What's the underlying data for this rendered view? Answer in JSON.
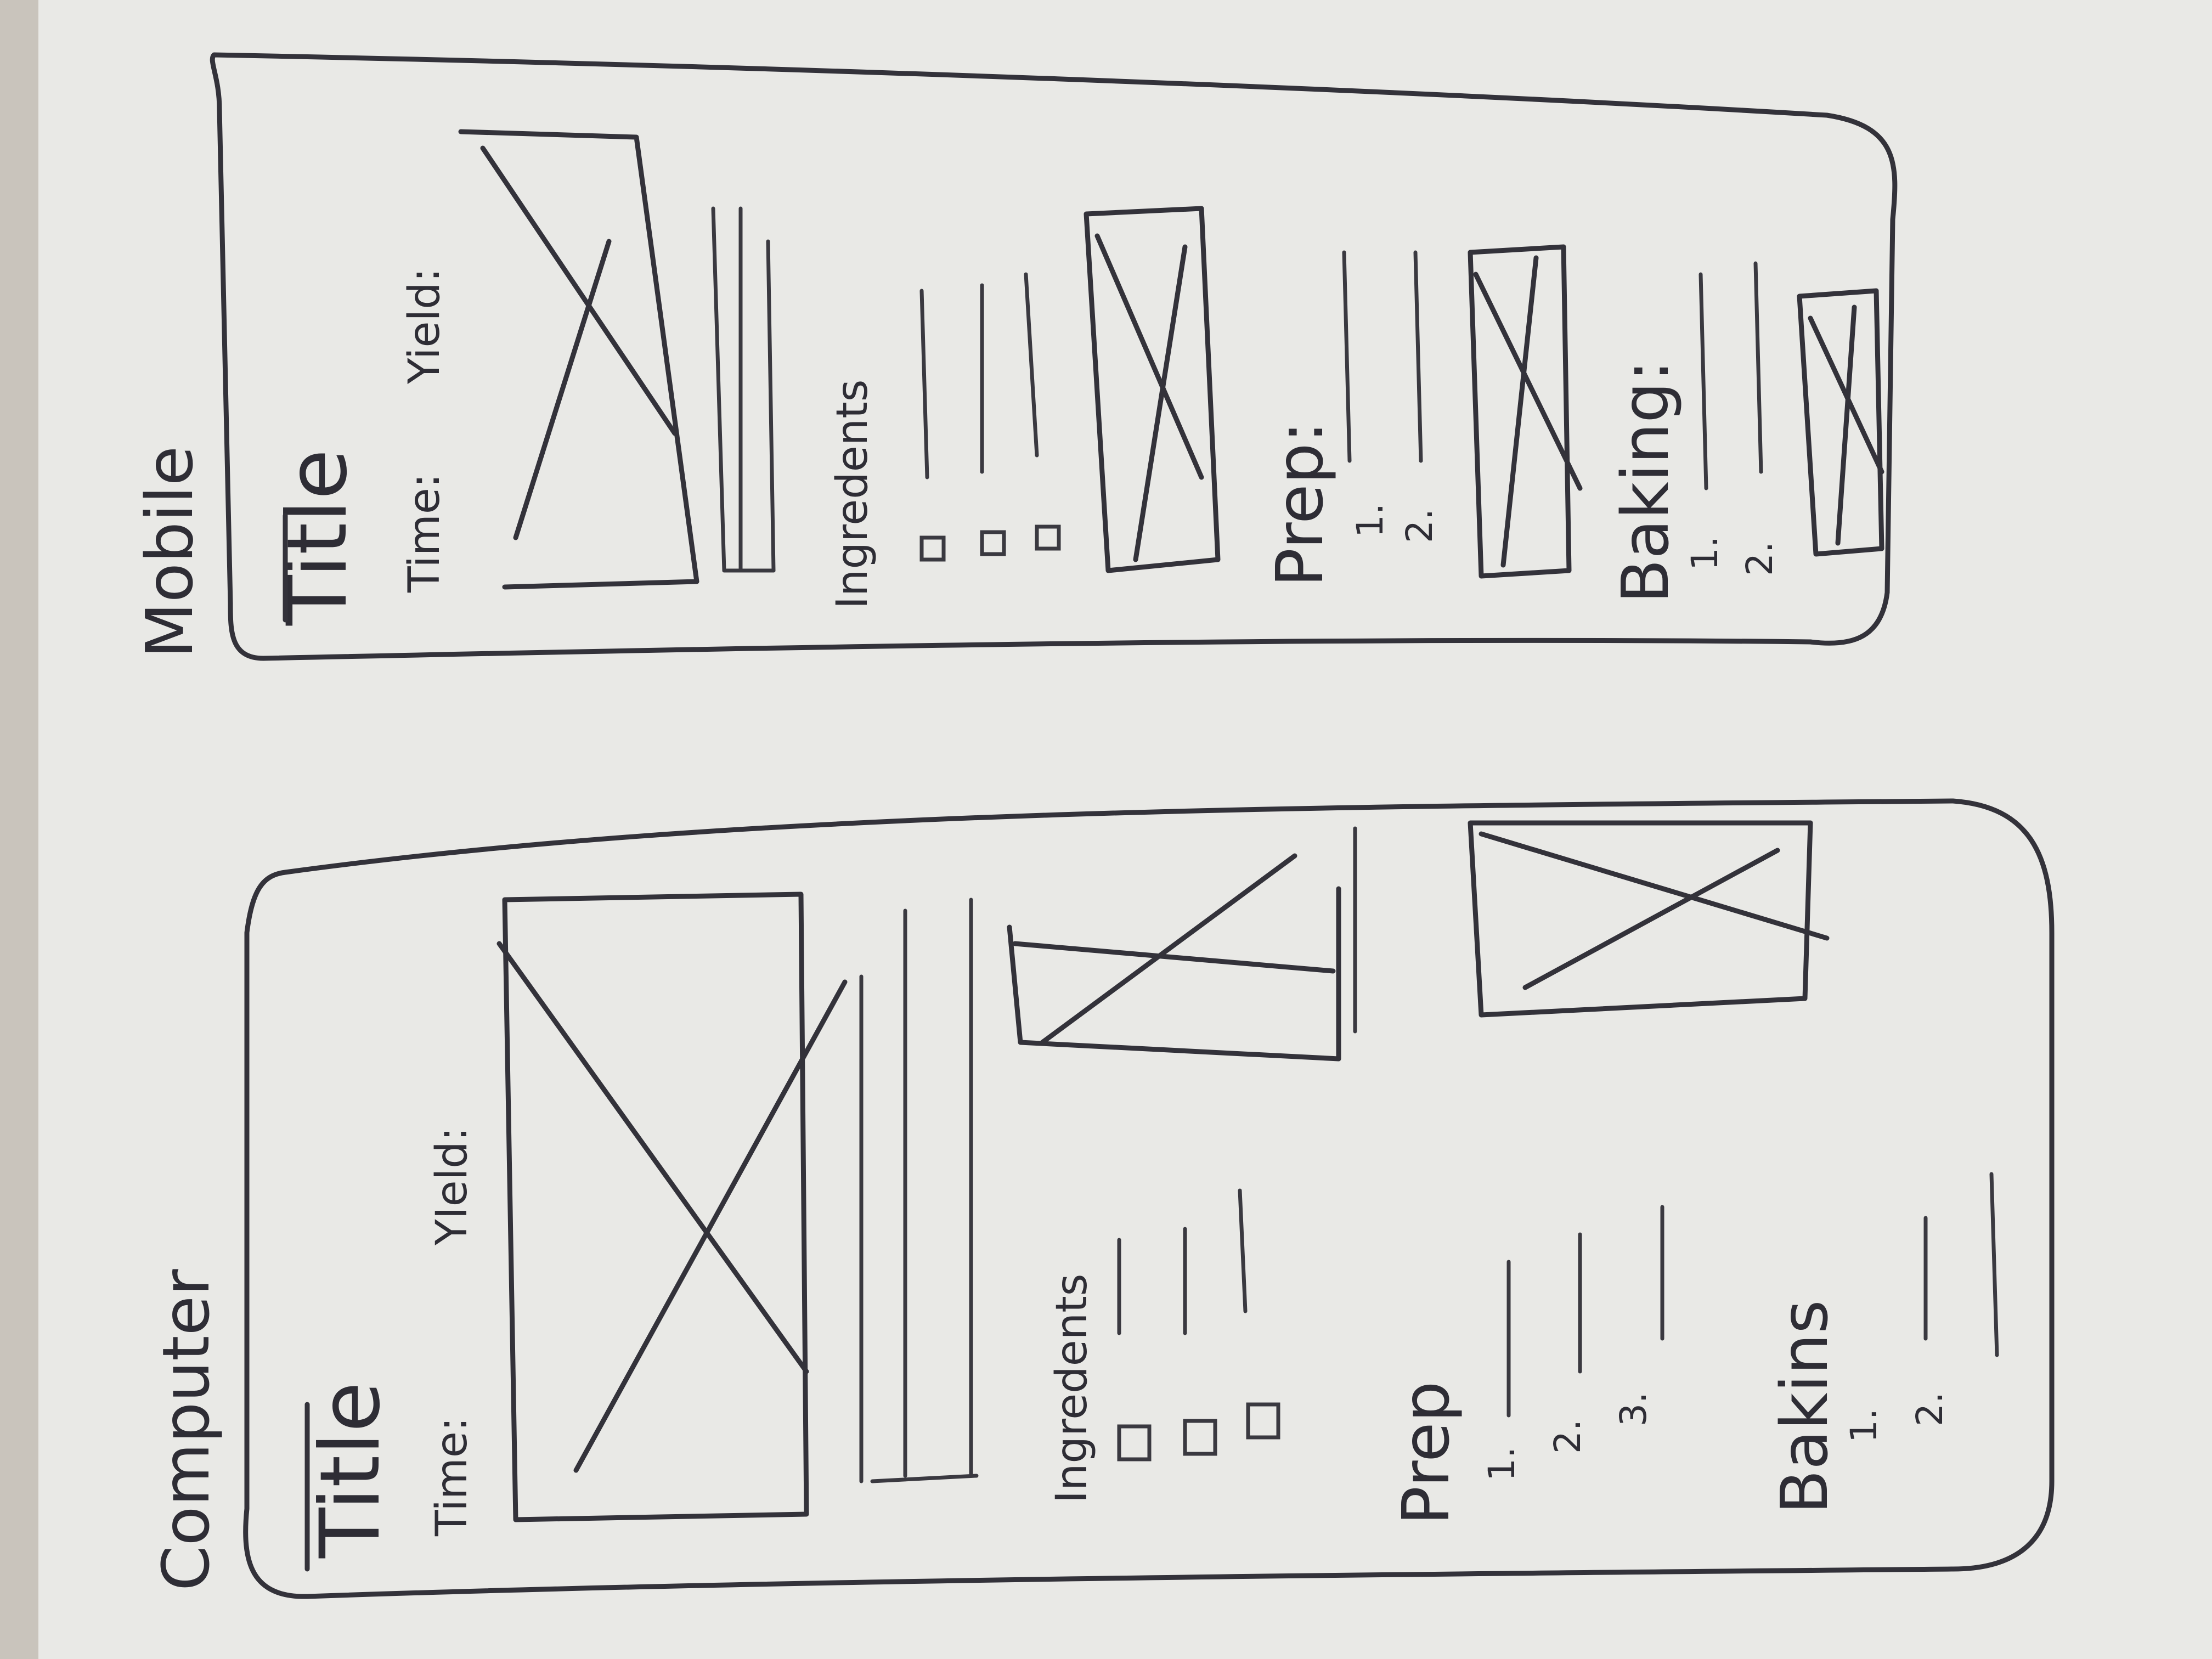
{
  "computer": {
    "heading": "Computer",
    "title": "Title",
    "time_label": "Time:",
    "yield_label": "YIeld:",
    "ingredients_label": "Ingredents",
    "prep_label": "Prep",
    "prep_steps": [
      "1.",
      "2.",
      "3."
    ],
    "baking_label": "Bakins",
    "baking_steps": [
      "1.",
      "2."
    ]
  },
  "mobile": {
    "heading": "Mobile",
    "title": "Title",
    "time_label": "Time:",
    "yield_label": "Yield:",
    "ingredients_label": "Ingredents",
    "prep_label": "Prep:",
    "prep_steps": [
      "1.",
      "2."
    ],
    "baking_label": "Baking:",
    "baking_steps": [
      "1.",
      "2."
    ]
  }
}
